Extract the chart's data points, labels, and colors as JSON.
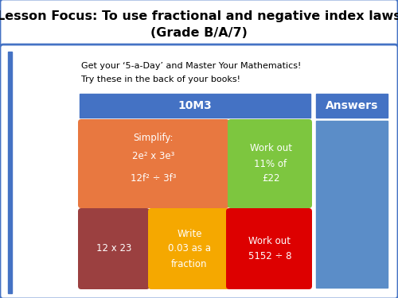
{
  "title_line1": "Lesson Focus: To use fractional and negative index laws",
  "title_line2": "(Grade B/A/7)",
  "title_bg": "#ffffff",
  "title_border": "#4472c4",
  "body_bg": "#ffffff",
  "left_bar_color": "#4472c4",
  "subtitle_text1": "Get your ‘5-a-Day’ and Master Your Mathematics!",
  "subtitle_text2": "Try these in the back of your books!",
  "header_label": "10M3",
  "header_color": "#4472c4",
  "answers_label": "Answers",
  "answers_header_color": "#4472c4",
  "answers_body_color": "#5b8dc8",
  "cell1_color": "#e87840",
  "cell2_color": "#7dc63f",
  "cell3_color": "#9b4040",
  "cell4_color": "#f5a800",
  "cell5_color": "#dd0000",
  "text_white": "#ffffff",
  "text_black": "#222222",
  "font_size_title": 11.5,
  "font_size_header": 10,
  "font_size_cell": 8.5,
  "font_size_subtitle": 8
}
